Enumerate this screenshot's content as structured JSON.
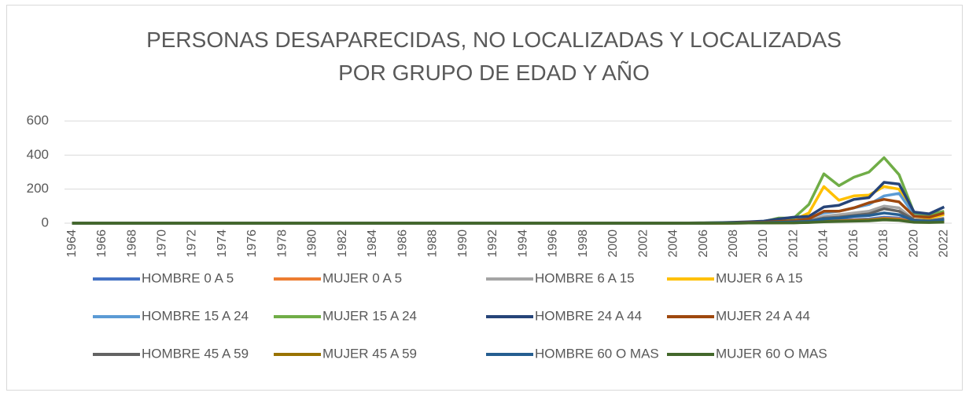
{
  "chart_data": {
    "type": "line",
    "title": [
      "PERSONAS DESAPARECIDAS, NO LOCALIZADAS Y LOCALIZADAS",
      "POR GRUPO DE EDAD Y AÑO"
    ],
    "categories": [
      "1964",
      null,
      "1966",
      null,
      "1968",
      null,
      "1970",
      null,
      "1972",
      null,
      "1974",
      null,
      "1976",
      null,
      "1978",
      null,
      "1980",
      null,
      "1982",
      null,
      "1984",
      null,
      "1986",
      null,
      "1988",
      null,
      "1990",
      null,
      "1992",
      null,
      "1994",
      null,
      "1996",
      null,
      "1998",
      null,
      "2000",
      null,
      "2002",
      null,
      "2004",
      null,
      "2006",
      null,
      "2008",
      null,
      "2010",
      null,
      "2012",
      null,
      "2014",
      null,
      "2016",
      null,
      "2018",
      null,
      "2020",
      null,
      "2022"
    ],
    "ylim": [
      0,
      600
    ],
    "yticks": [
      0,
      200,
      400,
      600
    ],
    "grid": true,
    "legend": "bottom",
    "series": [
      {
        "name": "HOMBRE 0 A 5",
        "color": "#4472c4",
        "values": [
          0,
          0,
          0,
          0,
          0,
          0,
          0,
          0,
          0,
          0,
          0,
          0,
          0,
          0,
          0,
          0,
          0,
          0,
          0,
          0,
          0,
          0,
          0,
          0,
          0,
          0,
          0,
          0,
          0,
          0,
          0,
          0,
          0,
          0,
          0,
          0,
          0,
          0,
          0,
          0,
          0,
          0,
          0,
          0,
          1,
          1,
          2,
          3,
          5,
          8,
          15,
          18,
          22,
          25,
          35,
          30,
          10,
          8,
          12
        ]
      },
      {
        "name": "MUJER 0 A 5",
        "color": "#ed7d31",
        "values": [
          0,
          0,
          0,
          0,
          0,
          0,
          0,
          0,
          0,
          0,
          0,
          0,
          0,
          0,
          0,
          0,
          0,
          0,
          0,
          0,
          0,
          0,
          0,
          0,
          0,
          0,
          0,
          0,
          0,
          0,
          0,
          0,
          0,
          0,
          0,
          0,
          0,
          0,
          0,
          0,
          0,
          0,
          0,
          0,
          1,
          1,
          2,
          3,
          4,
          6,
          12,
          14,
          18,
          20,
          28,
          25,
          8,
          6,
          10
        ]
      },
      {
        "name": "HOMBRE 6 A 15",
        "color": "#a5a5a5",
        "values": [
          0,
          0,
          0,
          0,
          0,
          0,
          0,
          0,
          0,
          0,
          0,
          0,
          0,
          0,
          0,
          0,
          0,
          0,
          0,
          0,
          0,
          0,
          0,
          0,
          0,
          0,
          0,
          0,
          0,
          0,
          0,
          0,
          0,
          0,
          0,
          0,
          0,
          0,
          0,
          0,
          0,
          0,
          0,
          1,
          1,
          2,
          4,
          6,
          10,
          15,
          40,
          50,
          60,
          70,
          100,
          90,
          20,
          15,
          30
        ]
      },
      {
        "name": "MUJER 6 A 15",
        "color": "#ffc000",
        "values": [
          0,
          0,
          0,
          0,
          0,
          0,
          0,
          0,
          0,
          0,
          0,
          0,
          0,
          0,
          0,
          0,
          0,
          0,
          0,
          0,
          0,
          0,
          0,
          0,
          0,
          0,
          0,
          0,
          0,
          0,
          0,
          0,
          0,
          0,
          0,
          0,
          0,
          0,
          0,
          0,
          0,
          0,
          1,
          2,
          3,
          5,
          8,
          15,
          20,
          60,
          215,
          135,
          160,
          165,
          215,
          200,
          40,
          30,
          50
        ]
      },
      {
        "name": "HOMBRE 15 A 24",
        "color": "#5b9bd5",
        "values": [
          0,
          0,
          0,
          0,
          0,
          0,
          0,
          0,
          0,
          0,
          0,
          0,
          0,
          0,
          0,
          0,
          0,
          0,
          0,
          0,
          0,
          0,
          0,
          0,
          0,
          0,
          0,
          0,
          0,
          0,
          0,
          0,
          0,
          0,
          0,
          0,
          0,
          0,
          0,
          0,
          0,
          0,
          1,
          1,
          2,
          4,
          6,
          10,
          15,
          30,
          60,
          70,
          90,
          110,
          160,
          175,
          50,
          40,
          60
        ]
      },
      {
        "name": "MUJER 15 A 24",
        "color": "#70ad47",
        "values": [
          0,
          0,
          0,
          0,
          0,
          0,
          0,
          0,
          0,
          0,
          0,
          0,
          0,
          0,
          0,
          0,
          0,
          0,
          0,
          0,
          0,
          0,
          0,
          0,
          0,
          0,
          0,
          0,
          0,
          0,
          0,
          0,
          0,
          0,
          0,
          0,
          0,
          0,
          0,
          0,
          0,
          1,
          2,
          3,
          4,
          6,
          10,
          30,
          30,
          110,
          290,
          220,
          270,
          300,
          385,
          285,
          60,
          50,
          70
        ]
      },
      {
        "name": "HOMBRE 24 A 44",
        "color": "#264478",
        "values": [
          0,
          0,
          0,
          0,
          0,
          0,
          0,
          0,
          0,
          0,
          0,
          0,
          0,
          0,
          0,
          0,
          0,
          0,
          0,
          0,
          0,
          0,
          0,
          0,
          0,
          0,
          0,
          0,
          0,
          0,
          0,
          0,
          0,
          0,
          0,
          0,
          0,
          0,
          0,
          0,
          0,
          1,
          2,
          3,
          5,
          8,
          12,
          25,
          35,
          40,
          95,
          105,
          140,
          150,
          240,
          230,
          65,
          55,
          95
        ]
      },
      {
        "name": "MUJER 24 A 44",
        "color": "#9e480e",
        "values": [
          0,
          0,
          0,
          0,
          0,
          0,
          0,
          0,
          0,
          0,
          0,
          0,
          0,
          0,
          0,
          0,
          0,
          0,
          0,
          0,
          0,
          0,
          0,
          0,
          0,
          0,
          0,
          0,
          0,
          0,
          0,
          0,
          0,
          0,
          0,
          0,
          0,
          0,
          0,
          0,
          0,
          0,
          1,
          1,
          2,
          4,
          6,
          10,
          15,
          25,
          70,
          70,
          90,
          120,
          140,
          125,
          40,
          35,
          60
        ]
      },
      {
        "name": "HOMBRE 45 A 59",
        "color": "#636363",
        "values": [
          0,
          0,
          0,
          0,
          0,
          0,
          0,
          0,
          0,
          0,
          0,
          0,
          0,
          0,
          0,
          0,
          0,
          0,
          0,
          0,
          0,
          0,
          0,
          0,
          0,
          0,
          0,
          0,
          0,
          0,
          0,
          0,
          0,
          0,
          0,
          0,
          0,
          0,
          0,
          0,
          0,
          0,
          0,
          1,
          1,
          2,
          3,
          5,
          8,
          12,
          30,
          35,
          45,
          55,
          85,
          70,
          20,
          15,
          25
        ]
      },
      {
        "name": "MUJER 45 A 59",
        "color": "#997300",
        "values": [
          0,
          0,
          0,
          0,
          0,
          0,
          0,
          0,
          0,
          0,
          0,
          0,
          0,
          0,
          0,
          0,
          0,
          0,
          0,
          0,
          0,
          0,
          0,
          0,
          0,
          0,
          0,
          0,
          0,
          0,
          0,
          0,
          0,
          0,
          0,
          0,
          0,
          0,
          0,
          0,
          0,
          0,
          0,
          0,
          0,
          1,
          1,
          2,
          3,
          5,
          10,
          12,
          15,
          18,
          25,
          20,
          6,
          5,
          8
        ]
      },
      {
        "name": "HOMBRE 60 O MAS",
        "color": "#255e91",
        "values": [
          0,
          0,
          0,
          0,
          0,
          0,
          0,
          0,
          0,
          0,
          0,
          0,
          0,
          0,
          0,
          0,
          0,
          0,
          0,
          0,
          0,
          0,
          0,
          0,
          0,
          0,
          0,
          0,
          0,
          0,
          0,
          0,
          0,
          0,
          0,
          0,
          0,
          0,
          0,
          0,
          0,
          0,
          0,
          1,
          1,
          2,
          3,
          5,
          7,
          10,
          25,
          30,
          40,
          45,
          60,
          50,
          15,
          10,
          20
        ]
      },
      {
        "name": "MUJER 60 O MAS",
        "color": "#43682b",
        "values": [
          0,
          0,
          0,
          0,
          0,
          0,
          0,
          0,
          0,
          0,
          0,
          0,
          0,
          0,
          0,
          0,
          0,
          0,
          0,
          0,
          0,
          0,
          0,
          0,
          0,
          0,
          0,
          0,
          0,
          0,
          0,
          0,
          0,
          0,
          0,
          0,
          0,
          0,
          0,
          0,
          0,
          0,
          0,
          0,
          0,
          1,
          1,
          2,
          2,
          4,
          8,
          10,
          12,
          14,
          20,
          16,
          5,
          4,
          6
        ]
      }
    ]
  }
}
